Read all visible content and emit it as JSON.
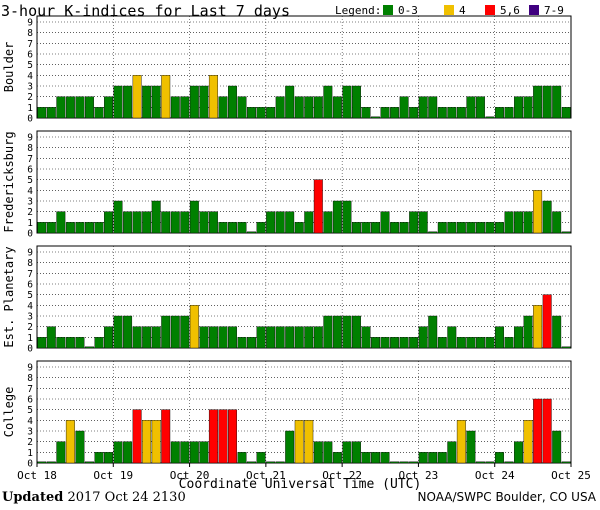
{
  "chart_data": {
    "type": "bar",
    "title": "3-hour K-indices for Last 7 days",
    "legend": {
      "label": "Legend:",
      "placement": "top-right",
      "entries": [
        {
          "label": "0-3",
          "color": "#008000"
        },
        {
          "label": "4",
          "color": "#F0C000"
        },
        {
          "label": "5,6",
          "color": "#FF0000"
        },
        {
          "label": "7-9",
          "color": "#400080"
        }
      ]
    },
    "xlabel": "Coordinate Universal Time (UTC)",
    "x_ticks": [
      "Oct 18",
      "Oct 19",
      "Oct 20",
      "Oct 21",
      "Oct 22",
      "Oct 23",
      "Oct 24",
      "Oct 25"
    ],
    "ylim": [
      0,
      9
    ],
    "y_ticks": [
      "0",
      "1",
      "2",
      "3",
      "4",
      "5",
      "6",
      "7",
      "8",
      "9"
    ],
    "bars_per_day": 8,
    "total_slots": 56,
    "color_thresholds": {
      "green_max": 3,
      "yellow": 4,
      "red_max": 6
    },
    "panels": [
      {
        "name": "Boulder",
        "values": [
          1,
          1,
          2,
          2,
          2,
          2,
          1,
          2,
          3,
          3,
          4,
          3,
          3,
          4,
          2,
          2,
          3,
          3,
          4,
          2,
          3,
          2,
          1,
          1,
          1,
          2,
          3,
          2,
          2,
          2,
          3,
          2,
          3,
          3,
          1,
          0,
          1,
          1,
          2,
          1,
          2,
          2,
          1,
          1,
          1,
          2,
          2,
          0,
          1,
          1,
          2,
          2,
          3,
          3,
          3,
          1
        ]
      },
      {
        "name": "Fredericksburg",
        "values": [
          1,
          1,
          2,
          1,
          1,
          1,
          1,
          2,
          3,
          2,
          2,
          2,
          3,
          2,
          2,
          2,
          3,
          2,
          2,
          1,
          1,
          1,
          0,
          1,
          2,
          2,
          2,
          1,
          2,
          5,
          2,
          3,
          3,
          1,
          1,
          1,
          2,
          1,
          1,
          2,
          2,
          0,
          1,
          1,
          1,
          1,
          1,
          1,
          1,
          2,
          2,
          2,
          4,
          3,
          2,
          0
        ]
      },
      {
        "name": "Est. Planetary",
        "values": [
          1,
          2,
          1,
          1,
          1,
          0,
          1,
          2,
          3,
          3,
          2,
          2,
          2,
          3,
          3,
          3,
          4,
          2,
          2,
          2,
          2,
          1,
          1,
          2,
          2,
          2,
          2,
          2,
          2,
          2,
          3,
          3,
          3,
          3,
          2,
          1,
          1,
          1,
          1,
          1,
          2,
          3,
          1,
          2,
          1,
          1,
          1,
          1,
          2,
          1,
          2,
          3,
          4,
          5,
          3,
          0
        ]
      },
      {
        "name": "College",
        "values": [
          0,
          0,
          2,
          4,
          3,
          0,
          1,
          1,
          2,
          2,
          5,
          4,
          4,
          5,
          2,
          2,
          2,
          2,
          5,
          5,
          5,
          1,
          0,
          1,
          0,
          0,
          3,
          4,
          4,
          2,
          2,
          1,
          2,
          2,
          1,
          1,
          1,
          0,
          0,
          0,
          1,
          1,
          1,
          2,
          4,
          3,
          0,
          0,
          1,
          0,
          2,
          4,
          6,
          6,
          3,
          0
        ]
      }
    ]
  },
  "footer": {
    "updated_label": "Updated",
    "updated_value": "2017 Oct 24 2130",
    "source": "NOAA/SWPC Boulder, CO USA"
  }
}
